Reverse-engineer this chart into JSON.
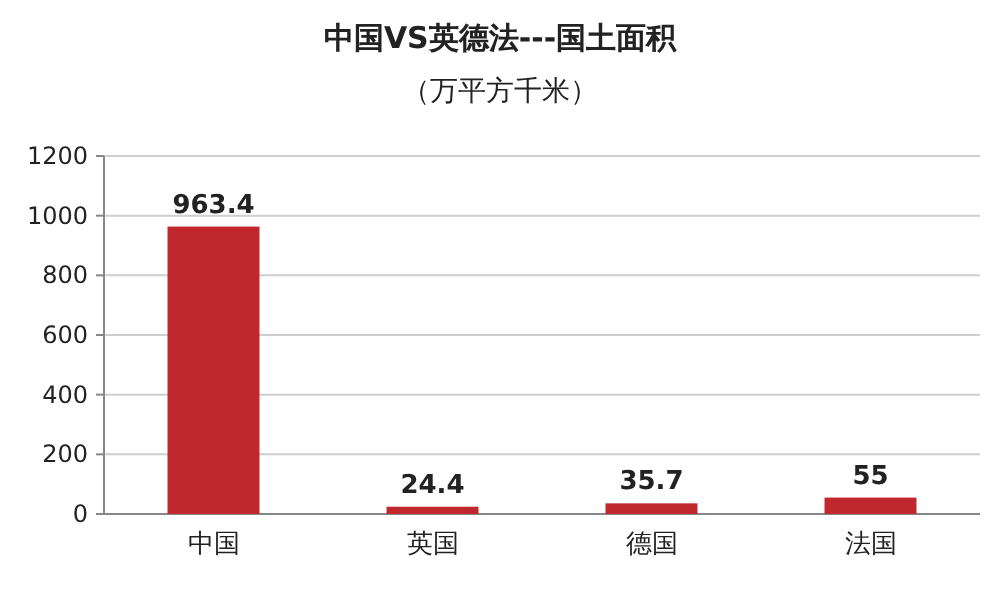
{
  "chart_data": {
    "type": "bar",
    "title": "中国VS英德法---国土面积",
    "subtitle": "（万平方千米）",
    "categories": [
      "中国",
      "英国",
      "德国",
      "法国"
    ],
    "values": [
      963.4,
      24.4,
      35.7,
      55
    ],
    "color": "#c0282e",
    "ylim": [
      0,
      1200
    ],
    "yticks": [
      0,
      200,
      400,
      600,
      800,
      1000,
      1200
    ],
    "grid": "y",
    "data_labels": true
  }
}
